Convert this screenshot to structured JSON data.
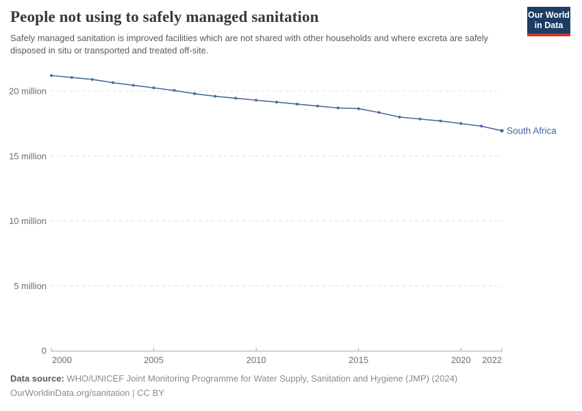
{
  "header": {
    "title": "People not using to safely managed sanitation",
    "subtitle": "Safely managed sanitation is improved facilities which are not shared with other households and where excreta are safely disposed in situ or transported and treated off-site.",
    "logo": {
      "line1": "Our World",
      "line2": "in Data",
      "bg_color": "#1d3d63",
      "accent_color": "#d93025"
    }
  },
  "chart_data": {
    "type": "line",
    "title": "People not using to safely managed sanitation",
    "xlabel": "",
    "ylabel": "",
    "unit": "people",
    "value_unit": "millions",
    "x_range": [
      2000,
      2022
    ],
    "ylim_millions": [
      0,
      21.8
    ],
    "grid": "dashed-horizontal",
    "legend_position": "end-of-line-label",
    "x_ticks": [
      2000,
      2005,
      2010,
      2015,
      2020,
      2022
    ],
    "y_ticks": [
      {
        "value": 0,
        "label": "0"
      },
      {
        "value": 5,
        "label": "5 million"
      },
      {
        "value": 10,
        "label": "10 million"
      },
      {
        "value": 15,
        "label": "15 million"
      },
      {
        "value": 20,
        "label": "20 million"
      }
    ],
    "series": [
      {
        "name": "South Africa",
        "color": "#4c6a9c",
        "label_color": "#3d649c",
        "x": [
          2000,
          2001,
          2002,
          2003,
          2004,
          2005,
          2006,
          2007,
          2008,
          2009,
          2010,
          2011,
          2012,
          2013,
          2014,
          2015,
          2016,
          2017,
          2018,
          2019,
          2020,
          2021,
          2022
        ],
        "values_millions": [
          21.2,
          21.05,
          20.9,
          20.65,
          20.45,
          20.25,
          20.05,
          19.8,
          19.6,
          19.45,
          19.3,
          19.15,
          19.0,
          18.85,
          18.7,
          18.65,
          18.35,
          18.0,
          17.85,
          17.7,
          17.5,
          17.3,
          16.95
        ]
      }
    ]
  },
  "axis_style": {
    "grid_color": "#dcdcdc",
    "axis_color": "#a8a8a8",
    "tick_label_color": "#6e6e6e"
  },
  "footer": {
    "datasource_label": "Data source:",
    "datasource_text": "WHO/UNICEF Joint Monitoring Programme for Water Supply, Sanitation and Hygiene (JMP) (2024)",
    "license_line": "OurWorldinData.org/sanitation | CC BY"
  }
}
